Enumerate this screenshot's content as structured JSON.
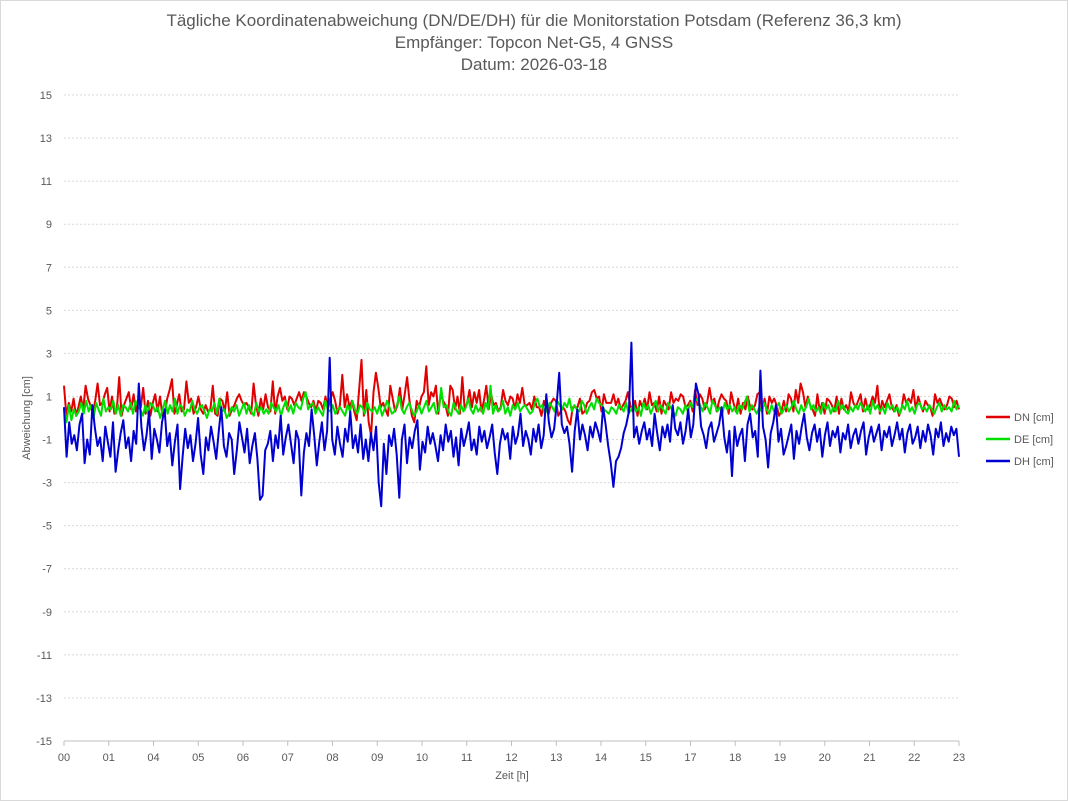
{
  "chart_data": {
    "type": "line",
    "title": "Tägliche Koordinatenabweichung (DN/DE/DH) für die Monitorstation Potsdam (Referenz 36,3 km)",
    "subtitle": "Empfänger: Topcon Net-G5, 4 GNSS",
    "date_line": "Datum: 2026-03-18",
    "xlabel": "Zeit [h]",
    "ylabel": "Abweichung [cm]",
    "xlim": [
      0,
      23
    ],
    "ylim": [
      -15,
      15
    ],
    "x_ticks": [
      "00",
      "01",
      "04",
      "05",
      "06",
      "07",
      "08",
      "09",
      "10",
      "11",
      "12",
      "13",
      "14",
      "15",
      "17",
      "18",
      "19",
      "20",
      "21",
      "22",
      "23"
    ],
    "y_ticks": [
      15,
      13,
      11,
      9,
      7,
      5,
      3,
      1,
      -1,
      -3,
      -5,
      -7,
      -9,
      -11,
      -13,
      -15
    ],
    "grid": "horizontal-dotted",
    "legend_position": "right",
    "series": [
      {
        "name": "DN [cm]",
        "color": "#e00000",
        "values": [
          1.5,
          0.1,
          0.7,
          0.3,
          0.9,
          0.1,
          0.5,
          1.0,
          0.4,
          1.5,
          0.9,
          0.6,
          0.2,
          0.8,
          1.6,
          0.6,
          0.7,
          1.1,
          1.4,
          0.3,
          1.0,
          0.2,
          0.4,
          1.9,
          0.1,
          0.6,
          0.9,
          1.2,
          0.4,
          1.1,
          0.3,
          0.9,
          0.5,
          1.4,
          0.2,
          0.8,
          0.1,
          0.7,
          1.1,
          0.3,
          1.0,
          0.1,
          0.2,
          0.9,
          1.3,
          1.8,
          0.2,
          0.6,
          1.1,
          0.3,
          0.4,
          1.7,
          0.7,
          0.9,
          0.2,
          0.5,
          1.0,
          0.4,
          0.2,
          0.6,
          0.3,
          0.4,
          1.5,
          0.2,
          0.1,
          0.9,
          0.8,
          0.3,
          1.2,
          0.1,
          0.4,
          0.6,
          0.9,
          1.1,
          0.8,
          0.6,
          0.7,
          0.5,
          0.2,
          1.6,
          0.6,
          0.1,
          0.9,
          0.4,
          1.1,
          0.5,
          0.3,
          1.7,
          0.2,
          1.0,
          1.4,
          0.8,
          1.0,
          0.4,
          1.0,
          0.9,
          0.6,
          0.9,
          1.2,
          0.8,
          1.2,
          1.0,
          0.7,
          0.5,
          0.8,
          0.3,
          0.8,
          0.7,
          0.4,
          1.0,
          0.4,
          0.9,
          1.2,
          0.8,
          0.2,
          0.6,
          2.0,
          0.5,
          1.1,
          0.5,
          0.8,
          0.3,
          -0.1,
          1.3,
          2.7,
          0.1,
          1.3,
          -0.2,
          -0.8,
          1.2,
          2.1,
          1.4,
          0.5,
          0.7,
          0.4,
          0.1,
          1.5,
          0.9,
          0.3,
          0.6,
          1.4,
          0.4,
          1.1,
          1.9,
          0.8,
          0.1,
          -0.2,
          0.8,
          0.5,
          1.0,
          1.2,
          2.4,
          0.6,
          1.2,
          1.0,
          1.5,
          0.2,
          1.1,
          0.8,
          0.6,
          0.1,
          1.5,
          1.3,
          0.4,
          1.0,
          0.2,
          1.9,
          0.4,
          0.7,
          1.3,
          0.5,
          1.2,
          0.7,
          1.3,
          0.3,
          0.8,
          1.5,
          0.4,
          1.1,
          0.6,
          0.7,
          0.3,
          0.5,
          1.3,
          0.8,
          0.6,
          1.0,
          0.9,
          0.4,
          1.1,
          0.7,
          1.4,
          0.6,
          0.6,
          0.7,
          0.4,
          1.0,
          0.5,
          0.5,
          0.1,
          0.8,
          0.4,
          0.2,
          0.7,
          0.9,
          0.8,
          0.1,
          0.3,
          0.5,
          0.3,
          -0.1,
          -0.3,
          0.5,
          0.5,
          0.5,
          0.9,
          0.2,
          0.3,
          0.7,
          0.8,
          1.2,
          1.3,
          0.9,
          1.0,
          0.3,
          1.1,
          0.7,
          0.7,
          0.7,
          1.1,
          0.6,
          0.9,
          0.4,
          0.6,
          0.8,
          1.2,
          0.6,
          0.3,
          0.8,
          0.1,
          0.8,
          0.5,
          0.9,
          0.4,
          1.2,
          0.6,
          0.7,
          0.3,
          1.0,
          0.2,
          0.8,
          0.6,
          0.4,
          1.2,
          0.7,
          0.9,
          0.8,
          1.1,
          1.0,
          0.5,
          0.6,
          0.8,
          0.3,
          1.3,
          0.6,
          1.1,
          0.9,
          0.4,
          0.7,
          1.4,
          0.7,
          0.9,
          0.3,
          0.8,
          1.1,
          0.9,
          0.8,
          0.2,
          1.2,
          0.7,
          0.3,
          0.9,
          0.2,
          0.7,
          0.4,
          1.0,
          0.5,
          0.4,
          0.6,
          1.1,
          1.2,
          0.3,
          0.9,
          0.2,
          1.0,
          0.7,
          0.9,
          0.6,
          0.1,
          0.3,
          0.8,
          0.3,
          1.1,
          0.9,
          0.3,
          1.3,
          0.7,
          1.6,
          1.2,
          0.5,
          1.0,
          0.6,
          0.4,
          0.1,
          1.1,
          0.3,
          0.7,
          0.2,
          0.9,
          0.8,
          0.6,
          0.3,
          1.0,
          0.2,
          0.9,
          0.4,
          0.6,
          0.3,
          1.2,
          0.7,
          0.5,
          0.8,
          1.1,
          0.3,
          0.9,
          0.4,
          0.6,
          1.0,
          0.7,
          1.5,
          0.2,
          0.8,
          0.5,
          0.8,
          1.1,
          0.5,
          0.3,
          0.6,
          0.1,
          0.4,
          1.1,
          0.7,
          0.9,
          0.7,
          1.3,
          0.4,
          1.0,
          0.6,
          0.3,
          0.8,
          0.6,
          0.5,
          0.1,
          1.1,
          0.7,
          0.9,
          0.6,
          0.4,
          0.6,
          1.0,
          0.9,
          0.5,
          0.8,
          0.4
        ]
      },
      {
        "name": "DE [cm]",
        "color": "#00e000",
        "values": [
          0.4,
          -0.2,
          0.6,
          -0.1,
          0.4,
          0.1,
          0.3,
          0.7,
          0.2,
          0.8,
          0.3,
          0.6,
          0.0,
          0.7,
          0.4,
          0.1,
          0.9,
          0.3,
          0.5,
          0.4,
          0.8,
          0.2,
          0.6,
          0.1,
          0.6,
          0.5,
          0.3,
          0.7,
          0.2,
          0.8,
          0.5,
          0.4,
          0.1,
          0.6,
          0.2,
          0.7,
          0.6,
          0.3,
          0.5,
          0.0,
          0.4,
          0.8,
          0.2,
          0.6,
          0.3,
          0.9,
          0.2,
          0.6,
          0.5,
          0.1,
          0.4,
          0.3,
          0.8,
          0.4,
          0.2,
          0.5,
          0.6,
          0.3,
          0.0,
          0.4,
          0.3,
          0.7,
          0.2,
          0.9,
          0.3,
          0.4,
          0.0,
          0.2,
          0.5,
          0.3,
          0.6,
          0.1,
          0.4,
          0.7,
          0.2,
          0.6,
          0.3,
          0.1,
          0.7,
          0.3,
          0.5,
          0.2,
          0.4,
          0.2,
          0.7,
          0.5,
          0.3,
          0.6,
          0.1,
          0.5,
          0.8,
          0.3,
          0.6,
          0.2,
          0.7,
          0.5,
          0.4,
          0.9,
          1.2,
          0.4,
          0.6,
          0.7,
          0.2,
          0.5,
          0.3,
          0.1,
          0.8,
          0.4,
          0.3,
          0.6,
          0.2,
          0.4,
          0.5,
          0.3,
          0.1,
          0.6,
          0.3,
          0.8,
          0.4,
          0.2,
          0.6,
          0.5,
          0.2,
          0.7,
          0.4,
          0.3,
          0.5,
          0.2,
          0.6,
          0.1,
          0.4,
          0.8,
          0.5,
          0.2,
          0.3,
          0.6,
          1.0,
          0.4,
          0.2,
          0.5,
          0.7,
          0.4,
          0.1,
          0.3,
          0.6,
          0.2,
          0.5,
          0.8,
          0.3,
          0.5,
          0.7,
          0.2,
          0.4,
          1.4,
          0.5,
          0.6,
          0.3,
          0.1,
          0.7,
          0.4,
          0.2,
          0.6,
          0.3,
          0.5,
          0.9,
          0.4,
          0.2,
          0.6,
          0.3,
          0.5,
          0.2,
          0.7,
          0.4,
          1.5,
          0.2,
          0.6,
          0.3,
          0.4,
          0.8,
          0.2,
          0.5,
          0.1,
          0.6,
          0.4,
          0.7,
          0.3,
          0.5,
          0.6,
          0.4,
          0.2,
          0.3,
          0.7,
          0.9,
          0.5,
          0.6,
          0.2,
          0.4,
          0.7,
          0.5,
          0.3,
          0.8,
          0.6,
          0.4,
          0.7,
          0.5,
          0.9,
          0.3,
          0.6,
          0.4,
          0.3,
          0.8,
          0.6,
          0.2,
          0.5,
          0.7,
          0.4,
          0.9,
          0.7,
          0.6,
          0.4,
          0.3,
          0.2,
          0.5,
          0.4,
          0.2,
          0.6,
          0.5,
          0.3,
          0.7,
          0.2,
          0.4,
          0.6,
          0.3,
          0.5,
          0.1,
          0.7,
          0.4,
          0.6,
          0.2,
          0.5,
          0.8,
          0.3,
          0.6,
          0.4,
          0.2,
          0.7,
          0.5,
          0.3,
          0.1,
          0.5,
          0.4,
          0.2,
          0.6,
          0.3,
          0.7,
          0.5,
          0.9,
          0.8,
          0.6,
          0.3,
          0.7,
          0.5,
          0.2,
          0.8,
          0.6,
          0.3,
          0.5,
          0.2,
          0.7,
          0.4,
          0.6,
          0.3,
          0.5,
          0.2,
          0.6,
          0.4,
          0.7,
          1.0,
          0.3,
          0.6,
          0.4,
          0.2,
          0.5,
          0.3,
          0.7,
          0.4,
          0.2,
          0.6,
          0.3,
          0.5,
          0.7,
          0.2,
          0.4,
          0.6,
          0.3,
          0.5,
          0.8,
          0.4,
          0.2,
          0.6,
          0.3,
          0.5,
          0.9,
          0.4,
          0.6,
          0.3,
          0.5,
          0.2,
          0.7,
          0.4,
          0.6,
          0.2,
          0.5,
          0.3,
          0.8,
          0.4,
          0.6,
          0.3,
          0.2,
          0.5,
          0.3,
          0.6,
          0.4,
          0.7,
          0.5,
          0.3,
          0.6,
          0.2,
          0.8,
          0.4,
          0.6,
          0.3,
          0.5,
          0.2,
          0.7,
          0.4,
          0.6,
          0.3,
          0.5,
          0.2,
          0.6,
          0.4,
          0.8,
          0.3,
          0.5,
          0.2,
          0.6,
          0.7,
          0.4,
          0.5,
          0.3,
          0.6,
          0.4,
          0.2,
          0.5,
          0.7,
          0.3,
          0.6,
          0.4,
          0.5,
          0.3,
          0.8,
          0.4,
          0.6
        ]
      },
      {
        "name": "DH [cm]",
        "color": "#0000d0",
        "values": [
          0.5,
          -1.8,
          -0.2,
          -1.2,
          -0.8,
          -1.5,
          -0.3,
          0.2,
          -2.1,
          -1.0,
          -1.7,
          0.6,
          -0.5,
          -1.3,
          -0.9,
          -2.0,
          -0.4,
          -1.1,
          -1.8,
          -0.2,
          -2.5,
          -1.5,
          -0.7,
          -0.1,
          -1.4,
          -0.9,
          -2.0,
          -0.6,
          -1.2,
          1.6,
          -0.4,
          -1.5,
          -0.8,
          0.3,
          -1.9,
          -0.5,
          -1.0,
          -1.6,
          -0.2,
          0.4,
          -1.3,
          -0.7,
          -2.2,
          -1.1,
          -0.3,
          -3.3,
          -1.8,
          -0.5,
          -1.4,
          -0.8,
          -2.0,
          -1.2,
          0.0,
          -1.7,
          -2.6,
          -0.9,
          -1.5,
          -0.4,
          -1.1,
          -1.9,
          -0.6,
          0.5,
          -1.3,
          -1.8,
          -0.7,
          -1.0,
          -2.6,
          -1.5,
          -0.2,
          -0.9,
          -1.6,
          -0.5,
          -2.1,
          -1.3,
          -0.7,
          -1.9,
          -3.8,
          -3.6,
          -1.5,
          -1.2,
          -0.6,
          -2.0,
          -0.8,
          -1.4,
          0.1,
          -1.7,
          -0.9,
          -0.3,
          -1.2,
          -2.1,
          -0.6,
          -1.0,
          -3.6,
          -1.6,
          -0.7,
          -1.3,
          0.4,
          -0.8,
          -2.2,
          -1.1,
          -0.2,
          -1.5,
          -0.6,
          2.8,
          -1.0,
          -1.7,
          -0.4,
          -1.2,
          -1.8,
          -0.5,
          -1.1,
          0.3,
          -1.4,
          -0.8,
          -1.6,
          -0.3,
          -1.9,
          -1.0,
          -2.0,
          -0.7,
          -1.5,
          -0.4,
          -3.0,
          -4.1,
          -1.2,
          -2.6,
          -0.8,
          -1.3,
          -0.5,
          -1.7,
          -3.7,
          -1.0,
          -0.3,
          -2.1,
          -0.9,
          -1.4,
          -0.6,
          -0.1,
          -2.4,
          -1.1,
          -1.6,
          -0.4,
          -1.2,
          -0.7,
          -1.3,
          -2.0,
          -0.8,
          -1.5,
          -0.3,
          -1.1,
          -0.6,
          -1.8,
          -0.9,
          -2.2,
          -0.5,
          -1.3,
          -0.8,
          -0.2,
          -1.5,
          -1.0,
          -1.7,
          -0.4,
          -1.1,
          -0.6,
          -1.4,
          -0.9,
          -0.3,
          -1.6,
          -2.6,
          -1.2,
          -0.5,
          -1.0,
          -0.7,
          -1.9,
          -0.4,
          -1.2,
          -0.8,
          0.2,
          -1.3,
          -0.6,
          -1.0,
          -1.7,
          -0.5,
          -1.1,
          -0.3,
          -1.4,
          -0.8,
          1.1,
          -0.2,
          -0.9,
          -0.5,
          0.6,
          2.1,
          -0.3,
          -0.7,
          -0.4,
          -1.2,
          -2.5,
          -0.6,
          0.4,
          -1.0,
          -0.3,
          -0.8,
          -1.5,
          -0.4,
          -0.9,
          -0.2,
          -0.6,
          -1.1,
          0.5,
          -0.3,
          -1.3,
          -2.1,
          -3.2,
          -2.0,
          -1.8,
          -1.4,
          -0.7,
          -0.3,
          0.3,
          3.5,
          -0.9,
          -0.4,
          -1.2,
          -0.6,
          -0.2,
          -1.0,
          -0.5,
          -1.3,
          0.2,
          -0.7,
          -1.5,
          -0.4,
          -0.9,
          -0.3,
          -1.1,
          0.6,
          -0.5,
          -0.8,
          -0.2,
          -1.2,
          -0.6,
          0.4,
          -0.9,
          -0.3,
          1.6,
          1.1,
          -0.4,
          -0.8,
          -1.4,
          -0.5,
          -0.2,
          -1.1,
          -0.7,
          -0.3,
          0.5,
          -0.9,
          -1.6,
          -0.6,
          -2.7,
          -0.4,
          -1.3,
          -0.8,
          -0.5,
          -2.0,
          -0.3,
          0.2,
          -0.9,
          -0.6,
          -1.8,
          2.2,
          -0.4,
          -1.0,
          -2.3,
          -0.7,
          -0.2,
          0.6,
          -1.1,
          -0.5,
          -1.7,
          -1.3,
          -0.8,
          -0.3,
          -1.9,
          -0.6,
          -1.2,
          -0.4,
          0.2,
          -0.9,
          -1.5,
          -0.7,
          -0.3,
          -1.1,
          -0.5,
          -1.8,
          -0.8,
          -0.2,
          -1.3,
          -0.6,
          -0.9,
          -0.4,
          -1.6,
          -0.7,
          -1.0,
          -0.3,
          -1.4,
          -0.8,
          -0.5,
          -1.2,
          -0.6,
          -0.2,
          -1.7,
          -0.9,
          -0.4,
          -1.1,
          -0.7,
          -0.3,
          -1.5,
          -0.6,
          -0.9,
          -0.4,
          -1.3,
          -0.8,
          -0.2,
          -1.0,
          -0.5,
          -1.6,
          -0.7,
          -0.3,
          -1.2,
          -0.9,
          -0.4,
          -1.4,
          -0.6,
          -1.1,
          -0.3,
          -0.8,
          -1.7,
          -0.5,
          -0.9,
          -0.2,
          -1.3,
          -0.7,
          -1.1,
          -0.4,
          -0.8,
          -0.5,
          -1.8
        ]
      }
    ]
  }
}
